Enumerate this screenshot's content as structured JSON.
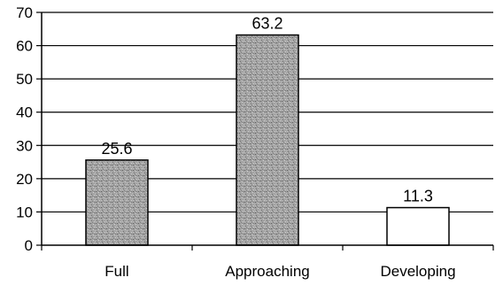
{
  "chart_data": {
    "type": "bar",
    "categories": [
      "Full",
      "Approaching",
      "Developing"
    ],
    "values": [
      25.6,
      63.2,
      11.3
    ],
    "data_labels": [
      "25.6",
      "63.2",
      "11.3"
    ],
    "ylim": [
      0,
      70
    ],
    "yticks": [
      0,
      10,
      20,
      30,
      40,
      50,
      60,
      70
    ],
    "ytick_labels": [
      "0",
      "10",
      "20",
      "30",
      "40",
      "50",
      "60",
      "70"
    ],
    "grid": true,
    "legend": "none",
    "title": "",
    "xlabel": "",
    "ylabel": "",
    "colors": {
      "patterned_bar": "#9a9a9a",
      "plain_bar": "#ffffff",
      "bar_stroke": "#000000",
      "grid": "#000000",
      "axis": "#000000"
    },
    "bar_fills": [
      "patterned",
      "patterned",
      "plain"
    ]
  }
}
